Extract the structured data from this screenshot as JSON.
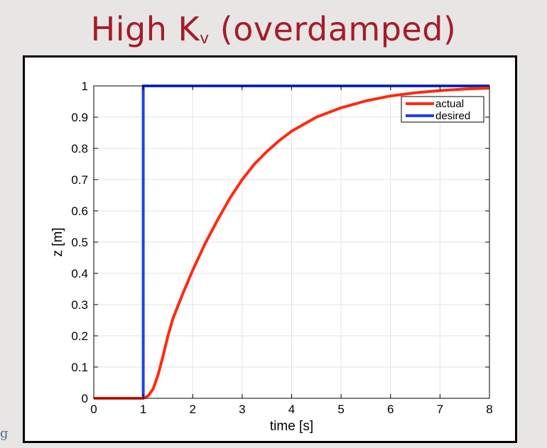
{
  "slide": {
    "title_main": "High K",
    "title_sub": "v",
    "title_suffix": " (overdamped)",
    "edge_fragment": "g"
  },
  "colors": {
    "title": "#a51c2a",
    "actual": "#ff2a10",
    "desired": "#1f3ff0",
    "grid": "#e3e3e3"
  },
  "chart_data": {
    "type": "line",
    "title": "",
    "xlabel": "time [s]",
    "ylabel": "z [m]",
    "xlim": [
      0,
      8
    ],
    "ylim": [
      0,
      1
    ],
    "xticks": [
      0,
      1,
      2,
      3,
      4,
      5,
      6,
      7,
      8
    ],
    "yticks": [
      0,
      0.1,
      0.2,
      0.3,
      0.4,
      0.5,
      0.6,
      0.7,
      0.8,
      0.9,
      1
    ],
    "grid": true,
    "legend_position": "top-right",
    "series": [
      {
        "name": "actual",
        "color": "#ff2a10",
        "x": [
          0,
          1,
          1.1,
          1.2,
          1.3,
          1.4,
          1.5,
          1.6,
          1.8,
          2,
          2.25,
          2.5,
          2.75,
          3,
          3.25,
          3.5,
          3.75,
          4,
          4.5,
          5,
          5.5,
          6,
          6.5,
          7,
          7.5,
          8
        ],
        "y": [
          0,
          0,
          0.008,
          0.03,
          0.075,
          0.135,
          0.2,
          0.255,
          0.335,
          0.41,
          0.495,
          0.57,
          0.64,
          0.7,
          0.75,
          0.79,
          0.825,
          0.855,
          0.9,
          0.93,
          0.952,
          0.968,
          0.978,
          0.985,
          0.99,
          0.993
        ]
      },
      {
        "name": "desired",
        "color": "#1f3ff0",
        "x": [
          0,
          1,
          1,
          8
        ],
        "y": [
          0,
          0,
          1,
          1
        ]
      }
    ]
  }
}
